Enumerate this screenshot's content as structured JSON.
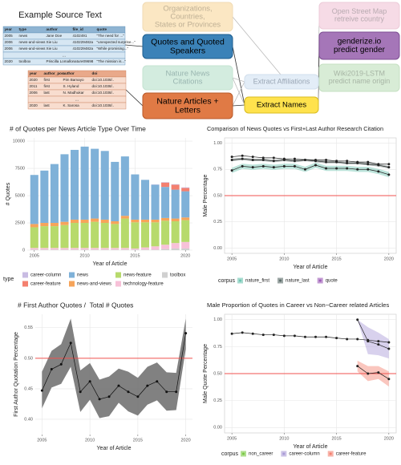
{
  "diagram": {
    "title": "Example Source Text",
    "tables": [
      {
        "columns": [
          "year",
          "type",
          "author",
          "file_id",
          "quote"
        ],
        "rows": [
          [
            "2005",
            "news",
            "Jane Doe",
            "4102491",
            "“The need for ...”"
          ],
          [
            "2006",
            "news-and-views",
            "Xie Liu",
            "410229482a",
            "“unexpected surprise...”"
          ],
          [
            "2006",
            "news-and-views",
            "Xie Liu",
            "410229482a",
            "“While promising...”"
          ]
        ],
        "ellipsis": "...",
        "final_row": [
          "2020",
          "toolbox",
          "Priscilla Lomallo",
          "nature09698",
          "“The mission is...”"
        ]
      },
      {
        "columns": [
          "year",
          "author_pos",
          "author",
          "doi"
        ],
        "rows": [
          [
            "2020",
            "first",
            "Pim Bamayo",
            "doi:10.1038/.."
          ],
          [
            "2011",
            "first",
            "S. Hyland",
            "doi:10.1038/.."
          ],
          [
            "2006",
            "last",
            "N. Madhukar",
            "doi:10.1038/.."
          ]
        ],
        "ellipsis": "...",
        "final_row": [
          "2020",
          "last",
          "K. Sarosa",
          "doi:10.1038/.."
        ]
      }
    ],
    "boxes": [
      {
        "lines": [
          "Organizations,",
          "Countries,",
          "States or Provinces"
        ]
      },
      {
        "lines": [
          "Quotes and Quoted",
          "Speakers"
        ]
      },
      {
        "lines": [
          "Nature News",
          "Citations"
        ]
      },
      {
        "lines": [
          "Nature Articles +",
          "Letters"
        ]
      },
      {
        "lines": [
          "Extract Affiliations"
        ]
      },
      {
        "lines": [
          "Extract Names"
        ]
      },
      {
        "lines": [
          "Open Street Map",
          "retreive country"
        ]
      },
      {
        "lines": [
          "genderize.io",
          "predict gender"
        ]
      },
      {
        "lines": [
          "Wiki2019-LSTM",
          "predict name origin"
        ]
      }
    ]
  },
  "chart_data": [
    {
      "type": "bar",
      "title": "# of Quotes per News Article Type Over Time",
      "xlabel": "Year of Article",
      "ylabel": "# Quotes",
      "x": [
        2005,
        2006,
        2007,
        2008,
        2009,
        2010,
        2011,
        2012,
        2013,
        2014,
        2015,
        2016,
        2017,
        2018,
        2019,
        2020
      ],
      "xlim": [
        2004.3,
        2020.7
      ],
      "xticks": [
        2005,
        2010,
        2015,
        2020
      ],
      "ylim": [
        0,
        10300
      ],
      "yticks": [
        0,
        2500,
        5000,
        7500,
        10000
      ],
      "grid": true,
      "legend_title": "type",
      "series": [
        {
          "name": "career-column",
          "color": "#c9bce3",
          "values": [
            0,
            0,
            0,
            0,
            0,
            0,
            0,
            0,
            0,
            0,
            0,
            0,
            30,
            40,
            50,
            60
          ]
        },
        {
          "name": "career-feature",
          "color": "#f4806f",
          "values": [
            0,
            0,
            0,
            0,
            0,
            0,
            0,
            0,
            0,
            0,
            0,
            0,
            0,
            400,
            450,
            300
          ]
        },
        {
          "name": "news",
          "color": "#7fb1d8",
          "values": [
            4500,
            4800,
            5400,
            6200,
            6400,
            6700,
            6400,
            6300,
            5450,
            5450,
            4150,
            3650,
            3200,
            2850,
            2650,
            2400
          ]
        },
        {
          "name": "news-and-views",
          "color": "#f6a45a",
          "values": [
            300,
            300,
            300,
            300,
            300,
            300,
            300,
            300,
            250,
            250,
            250,
            250,
            250,
            250,
            250,
            250
          ]
        },
        {
          "name": "news-feature",
          "color": "#b7da6c",
          "values": [
            1900,
            2000,
            2000,
            2100,
            2300,
            2300,
            2400,
            2300,
            2200,
            2700,
            2400,
            2300,
            2200,
            2200,
            2000,
            2000
          ]
        },
        {
          "name": "technology-feature",
          "color": "#f7c1d8",
          "values": [
            150,
            150,
            150,
            150,
            150,
            150,
            150,
            150,
            150,
            150,
            100,
            200,
            300,
            400,
            500,
            600
          ]
        },
        {
          "name": "toolbox",
          "color": "#d0d0d0",
          "values": [
            50,
            50,
            50,
            50,
            50,
            50,
            50,
            50,
            50,
            50,
            50,
            50,
            50,
            100,
            150,
            150
          ]
        }
      ]
    },
    {
      "type": "line",
      "title": "Comparison of News Quotes vs First+Last Author Research Citation",
      "xlabel": "Year of Article",
      "ylabel": "Male Percentage",
      "x": [
        2005,
        2006,
        2007,
        2008,
        2009,
        2010,
        2011,
        2012,
        2013,
        2014,
        2015,
        2016,
        2017,
        2018,
        2019,
        2020
      ],
      "xlim": [
        2004.3,
        2020.7
      ],
      "xticks": [
        2005,
        2010,
        2015,
        2020
      ],
      "ylim": [
        -0.05,
        1.05
      ],
      "yticks": [
        {
          "value": 0,
          "label": "0.00"
        },
        {
          "value": 0.25,
          "label": "0.25"
        },
        {
          "value": 0.5,
          "label": "0.50"
        },
        {
          "value": 0.75,
          "label": "0.75"
        },
        {
          "value": 1,
          "label": "1.00"
        }
      ],
      "grid": true,
      "marker_color": "#222222",
      "ref_line": {
        "value": 0.5,
        "color": "#f0524f"
      },
      "legend_title": "corpus",
      "series": [
        {
          "name": "nature_first",
          "color": "#6cc4b0",
          "values": [
            0.74,
            0.78,
            0.77,
            0.78,
            0.77,
            0.78,
            0.78,
            0.75,
            0.79,
            0.76,
            0.76,
            0.76,
            0.75,
            0.75,
            0.73,
            0.7
          ],
          "lower": [
            0.715,
            0.755,
            0.745,
            0.755,
            0.745,
            0.755,
            0.755,
            0.725,
            0.765,
            0.735,
            0.735,
            0.735,
            0.725,
            0.725,
            0.705,
            0.675
          ],
          "upper": [
            0.765,
            0.805,
            0.795,
            0.805,
            0.795,
            0.805,
            0.805,
            0.775,
            0.815,
            0.785,
            0.785,
            0.785,
            0.775,
            0.775,
            0.755,
            0.725
          ]
        },
        {
          "name": "nature_last",
          "color": "#5a6b68",
          "values": [
            0.84,
            0.85,
            0.84,
            0.84,
            0.83,
            0.84,
            0.83,
            0.84,
            0.83,
            0.82,
            0.82,
            0.81,
            0.81,
            0.8,
            0.79,
            0.77
          ],
          "lower": [
            0.828,
            0.838,
            0.828,
            0.828,
            0.818,
            0.828,
            0.818,
            0.828,
            0.818,
            0.808,
            0.808,
            0.798,
            0.798,
            0.788,
            0.778,
            0.758
          ],
          "upper": [
            0.852,
            0.862,
            0.852,
            0.852,
            0.842,
            0.852,
            0.842,
            0.852,
            0.842,
            0.832,
            0.832,
            0.822,
            0.822,
            0.812,
            0.802,
            0.782
          ]
        },
        {
          "name": "quote",
          "color": "#9b59b6",
          "values": [
            0.87,
            0.88,
            0.87,
            0.86,
            0.86,
            0.85,
            0.85,
            0.84,
            0.84,
            0.84,
            0.83,
            0.83,
            0.82,
            0.82,
            0.8,
            0.8
          ]
        }
      ]
    },
    {
      "type": "line",
      "title": "# First Author Quotes /  Total # Quotes",
      "xlabel": "Year of Article",
      "ylabel": "First Author Quotation Percentage",
      "x": [
        2005,
        2006,
        2007,
        2008,
        2009,
        2010,
        2011,
        2012,
        2013,
        2014,
        2015,
        2016,
        2017,
        2018,
        2019,
        2020
      ],
      "xlim": [
        2004.3,
        2020.7
      ],
      "xticks": [
        2005,
        2010,
        2015,
        2020
      ],
      "ylim": [
        0.375,
        0.572
      ],
      "yticks": [
        {
          "value": 0.4,
          "label": "0.40"
        },
        {
          "value": 0.45,
          "label": "0.45"
        },
        {
          "value": 0.5,
          "label": "0.50"
        },
        {
          "value": 0.55,
          "label": "0.55"
        }
      ],
      "grid": true,
      "marker_color": "#111111",
      "color": "#6b6b6b",
      "ref_line": {
        "value": 0.5,
        "color": "#f0524f"
      },
      "values": [
        0.447,
        0.482,
        0.49,
        0.525,
        0.445,
        0.462,
        0.433,
        0.437,
        0.455,
        0.445,
        0.437,
        0.455,
        0.462,
        0.445,
        0.445,
        0.541
      ],
      "lower": [
        0.418,
        0.452,
        0.458,
        0.486,
        0.412,
        0.432,
        0.402,
        0.405,
        0.427,
        0.413,
        0.406,
        0.424,
        0.431,
        0.414,
        0.415,
        0.515
      ],
      "upper": [
        0.478,
        0.512,
        0.523,
        0.565,
        0.48,
        0.492,
        0.465,
        0.47,
        0.483,
        0.478,
        0.468,
        0.486,
        0.493,
        0.477,
        0.476,
        0.565
      ]
    },
    {
      "type": "line",
      "title": "Male Proportion of Quotes in Career vs Non−Career related Articles",
      "xlabel": "Year of Article",
      "ylabel": "Male Quote Percentage",
      "x": [
        2005,
        2006,
        2007,
        2008,
        2009,
        2010,
        2011,
        2012,
        2013,
        2014,
        2015,
        2016,
        2017,
        2018,
        2019,
        2020
      ],
      "xlim": [
        2004.3,
        2020.7
      ],
      "xticks": [
        2005,
        2010,
        2015,
        2020
      ],
      "ylim": [
        -0.05,
        1.05
      ],
      "yticks": [
        {
          "value": 0,
          "label": "0.00"
        },
        {
          "value": 0.25,
          "label": "0.25"
        },
        {
          "value": 0.5,
          "label": "0.50"
        },
        {
          "value": 0.75,
          "label": "0.75"
        },
        {
          "value": 1,
          "label": "1.00"
        }
      ],
      "grid": true,
      "marker_color": "#222222",
      "ref_line": {
        "value": 0.5,
        "color": "#f0524f"
      },
      "legend_title": "corpus",
      "series": [
        {
          "name": "non_career",
          "color": "#7ac943",
          "values": [
            0.87,
            0.88,
            0.87,
            0.86,
            0.86,
            0.85,
            0.85,
            0.84,
            0.84,
            0.84,
            0.83,
            0.82,
            0.82,
            0.81,
            0.8,
            0.79
          ]
        },
        {
          "name": "career-column",
          "color": "#a99ad6",
          "values": [
            null,
            null,
            null,
            null,
            null,
            null,
            null,
            null,
            null,
            null,
            null,
            null,
            1.0,
            0.8,
            0.77,
            0.73
          ],
          "lower": [
            null,
            null,
            null,
            null,
            null,
            null,
            null,
            null,
            null,
            null,
            null,
            null,
            1.0,
            0.68,
            0.67,
            0.64
          ],
          "upper": [
            null,
            null,
            null,
            null,
            null,
            null,
            null,
            null,
            null,
            null,
            null,
            null,
            1.0,
            0.93,
            0.88,
            0.82
          ]
        },
        {
          "name": "career-feature",
          "color": "#f4806f",
          "values": [
            null,
            null,
            null,
            null,
            null,
            null,
            null,
            null,
            null,
            null,
            null,
            null,
            0.57,
            0.5,
            0.51,
            0.45
          ],
          "lower": [
            null,
            null,
            null,
            null,
            null,
            null,
            null,
            null,
            null,
            null,
            null,
            null,
            0.52,
            0.43,
            0.45,
            0.38
          ],
          "upper": [
            null,
            null,
            null,
            null,
            null,
            null,
            null,
            null,
            null,
            null,
            null,
            null,
            0.62,
            0.57,
            0.57,
            0.52
          ]
        }
      ]
    }
  ]
}
